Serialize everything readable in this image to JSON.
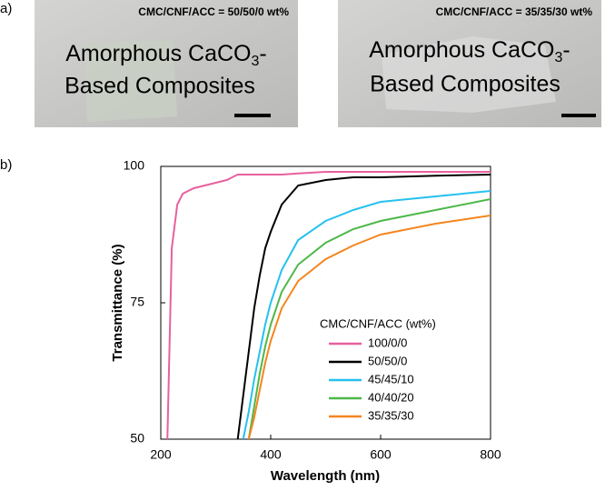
{
  "panel_labels": [
    "a)",
    "b)"
  ],
  "photos": [
    {
      "caption": "CMC/CNF/ACC = 50/50/0 wt%",
      "line1": [
        "Amorphous CaCO",
        "3",
        "-"
      ],
      "line2": "Based Composites"
    },
    {
      "caption": "CMC/CNF/ACC = 35/35/30 wt%",
      "line1": [
        "Amorphous CaCO",
        "3",
        "-"
      ],
      "line2": "Based Composites"
    }
  ],
  "chart_data": {
    "type": "line",
    "x_label": "Wavelength (nm)",
    "y_label": "Transmittance (%)",
    "legend_title": "CMC/CNF/ACC (wt%)",
    "x": [
      212,
      220,
      230,
      240,
      260,
      280,
      300,
      320,
      340,
      350,
      360,
      370,
      380,
      390,
      400,
      420,
      450,
      500,
      550,
      600,
      700,
      800
    ],
    "series": [
      {
        "name": "100/0/0",
        "color": "#e8609e",
        "values": [
          50,
          85,
          93,
          95,
          96,
          96.5,
          97,
          97.5,
          98.5,
          98.5,
          98.5,
          98.5,
          98.5,
          98.5,
          98.5,
          98.5,
          98.7,
          99,
          99,
          99,
          99,
          99
        ]
      },
      {
        "name": "50/50/0",
        "color": "#000000",
        "values": [
          null,
          null,
          null,
          null,
          null,
          null,
          null,
          null,
          50,
          58,
          66,
          74,
          80,
          85,
          88,
          93,
          96.5,
          97.5,
          98,
          98,
          98.3,
          98.5
        ]
      },
      {
        "name": "45/45/10",
        "color": "#26c1ee",
        "values": [
          null,
          null,
          null,
          null,
          null,
          null,
          null,
          null,
          null,
          50,
          55,
          61,
          66,
          71,
          75,
          81,
          86.5,
          90,
          92,
          93.5,
          94.5,
          95.5
        ]
      },
      {
        "name": "40/40/20",
        "color": "#4db848",
        "values": [
          null,
          null,
          null,
          null,
          null,
          null,
          null,
          null,
          null,
          null,
          50,
          56,
          62,
          67,
          71,
          77,
          82,
          86,
          88.5,
          90,
          92,
          94
        ]
      },
      {
        "name": "35/35/30",
        "color": "#f5851f",
        "values": [
          null,
          null,
          null,
          null,
          null,
          null,
          null,
          null,
          null,
          null,
          50,
          54,
          59,
          64,
          68,
          74,
          79,
          83,
          85.5,
          87.5,
          89.5,
          91
        ]
      }
    ],
    "xlim": [
      200,
      800
    ],
    "xticks": [
      200,
      400,
      600,
      800
    ],
    "ylim": [
      50,
      100
    ],
    "yticks": [
      50,
      75,
      100
    ]
  }
}
